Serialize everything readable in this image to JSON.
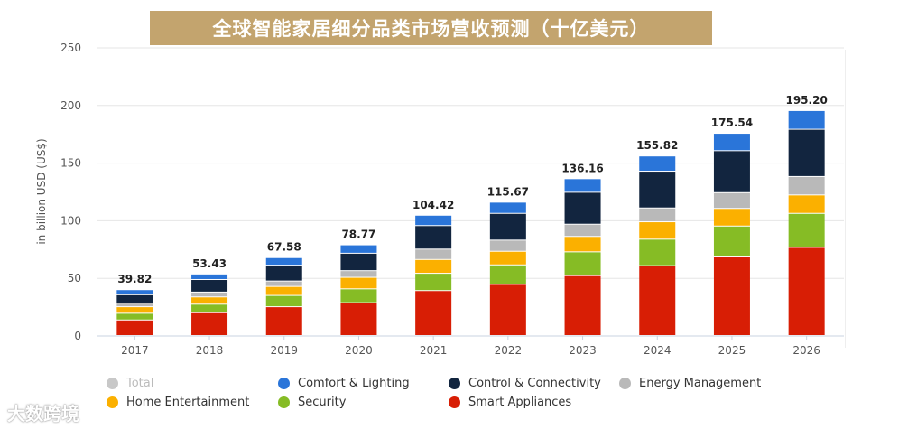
{
  "title": "全球智能家居细分品类市场营收预测（十亿美元）",
  "watermark": "大数跨境",
  "chart_data": {
    "type": "bar",
    "stacked": true,
    "title": "全球智能家居细分品类市场营收预测（十亿美元）",
    "xlabel": "",
    "ylabel": "in billion USD (US$)",
    "ylim": [
      0,
      250
    ],
    "yticks": [
      0,
      50,
      100,
      150,
      200,
      250
    ],
    "grid": true,
    "legend_position": "bottom",
    "categories": [
      "2017",
      "2018",
      "2019",
      "2020",
      "2021",
      "2022",
      "2023",
      "2024",
      "2025",
      "2026"
    ],
    "totals": [
      "39.82",
      "53.43",
      "67.58",
      "78.77",
      "104.42",
      "115.67",
      "136.16",
      "155.82",
      "175.54",
      "195.20"
    ],
    "series": [
      {
        "name": "Smart Appliances",
        "color": "#d81e05",
        "values": [
          13.5,
          19.8,
          25.0,
          28.5,
          39.0,
          44.4,
          52.0,
          60.6,
          68.2,
          76.5
        ]
      },
      {
        "name": "Security",
        "color": "#86bc25",
        "values": [
          5.8,
          7.4,
          9.8,
          12.0,
          15.0,
          16.9,
          20.6,
          23.0,
          26.8,
          29.5
        ]
      },
      {
        "name": "Home Entertainment",
        "color": "#fbb000",
        "values": [
          5.7,
          6.3,
          7.8,
          10.0,
          12.0,
          11.8,
          13.4,
          15.1,
          15.3,
          16.0
        ]
      },
      {
        "name": "Energy Management",
        "color": "#b9b9b9",
        "values": [
          3.2,
          4.2,
          4.7,
          5.8,
          9.0,
          9.7,
          10.6,
          12.0,
          13.7,
          16.0
        ]
      },
      {
        "name": "Control & Connectivity",
        "color": "#12253f",
        "values": [
          7.2,
          10.9,
          13.7,
          15.1,
          20.4,
          23.2,
          27.7,
          31.9,
          36.4,
          41.0
        ]
      },
      {
        "name": "Comfort & Lighting",
        "color": "#2a75d9",
        "values": [
          4.4,
          4.8,
          6.6,
          7.3,
          9.0,
          9.7,
          11.8,
          13.2,
          15.1,
          16.2
        ]
      }
    ],
    "legend": [
      {
        "name": "Total",
        "color": "#c8c8c8",
        "disabled": true
      },
      {
        "name": "Comfort & Lighting",
        "color": "#2a75d9"
      },
      {
        "name": "Control & Connectivity",
        "color": "#12253f"
      },
      {
        "name": "Energy Management",
        "color": "#b9b9b9"
      },
      {
        "name": "Home Entertainment",
        "color": "#fbb000"
      },
      {
        "name": "Security",
        "color": "#86bc25"
      },
      {
        "name": "Smart Appliances",
        "color": "#d81e05"
      }
    ]
  }
}
